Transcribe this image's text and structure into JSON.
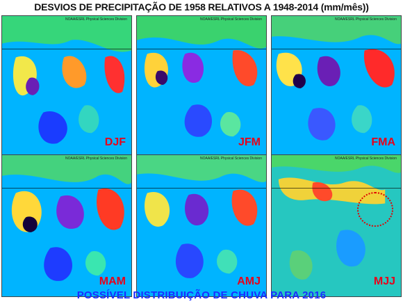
{
  "title": "DESVIOS DE PRECIPITAÇÃO  DE 1958  RELATIVOS A 1948-2014 (mm/mês))",
  "credit": "NOAA/ESRL Physical Sciences Division",
  "panels": [
    {
      "label": "DJF"
    },
    {
      "label": "JFM"
    },
    {
      "label": "FMA"
    },
    {
      "label": "MAM"
    },
    {
      "label": "AMJ"
    },
    {
      "label": "MJJ"
    }
  ],
  "footer": "POSSÍVEL DISTRIBUIÇÃO DE CHUVA PARA 2016",
  "colors": {
    "title": "#111111",
    "labels": "#e8001a",
    "footer": "#1a2cff",
    "highlight": "#e00000"
  }
}
